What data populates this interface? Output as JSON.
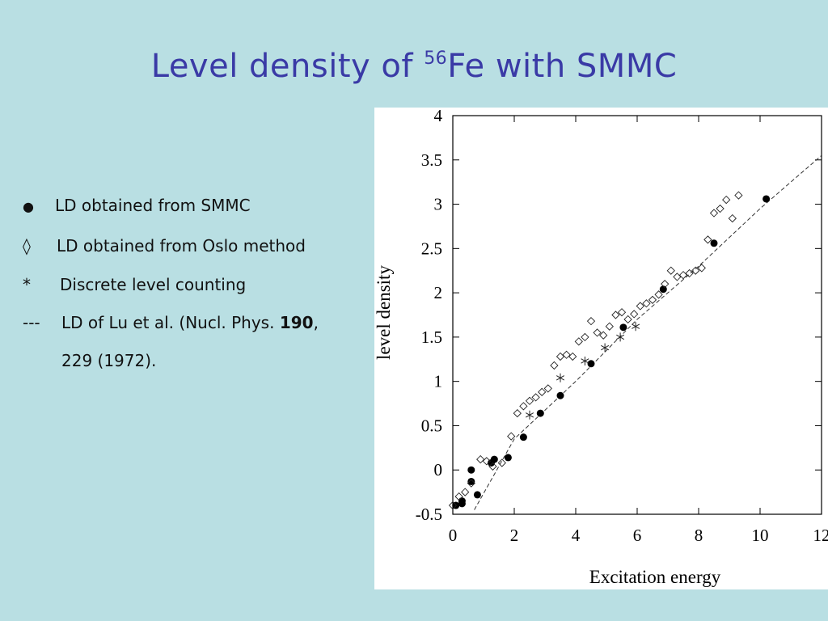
{
  "title": {
    "prefix": "Level density of ",
    "superscript": "56",
    "suffix": "Fe with SMMC"
  },
  "legend_text": [
    {
      "marker": "●",
      "text": "LD obtained from SMMC"
    },
    {
      "marker": "◊",
      "text": "LD obtained from Oslo method"
    },
    {
      "marker": "*",
      "text": "Discrete level counting"
    },
    {
      "marker": "---",
      "text_before": "LD of Lu et al. (Nucl. Phys. ",
      "bold": "190",
      "text_after": ",",
      "continuation": "229 (1972)."
    }
  ],
  "colors": {
    "background": "#b9dfe3",
    "title": "#3a3aa6",
    "chart_background": "#ffffff"
  },
  "chart_data": {
    "type": "scatter",
    "title": "",
    "xlabel": "Excitation energy",
    "ylabel": "level density",
    "xlim": [
      0,
      12
    ],
    "ylim": [
      -0.5,
      4
    ],
    "x_ticks": [
      "0",
      "2",
      "4",
      "6",
      "8",
      "10",
      "12"
    ],
    "y_ticks": [
      "-0.5",
      "0",
      "0.5",
      "1",
      "1.5",
      "2",
      "2.5",
      "3",
      "3.5",
      "4"
    ],
    "grid": false,
    "series": [
      {
        "name": "LD obtained from SMMC",
        "marker": "filled-circle",
        "x": [
          0.1,
          0.3,
          0.3,
          0.6,
          0.6,
          0.8,
          1.25,
          1.35,
          1.8,
          2.3,
          2.85,
          3.5,
          4.5,
          5.55,
          6.85,
          8.5,
          10.2
        ],
        "y": [
          -0.4,
          -0.38,
          -0.35,
          -0.13,
          0.0,
          -0.28,
          0.08,
          0.12,
          0.14,
          0.37,
          0.64,
          0.84,
          1.2,
          1.61,
          2.04,
          2.56,
          3.06
        ]
      },
      {
        "name": "LD obtained from Oslo method",
        "marker": "open-diamond",
        "x": [
          0.0,
          0.2,
          0.4,
          0.6,
          0.9,
          1.1,
          1.3,
          1.6,
          1.9,
          2.1,
          2.3,
          2.5,
          2.7,
          2.9,
          3.1,
          3.3,
          3.5,
          3.7,
          3.9,
          4.1,
          4.3,
          4.5,
          4.7,
          4.9,
          5.1,
          5.3,
          5.5,
          5.7,
          5.9,
          6.1,
          6.3,
          6.5,
          6.7,
          6.9,
          7.1,
          7.3,
          7.5,
          7.7,
          7.9,
          8.1,
          8.3,
          8.5,
          8.7,
          8.9,
          9.1,
          9.3
        ],
        "y": [
          -0.4,
          -0.3,
          -0.25,
          -0.15,
          0.12,
          0.1,
          0.04,
          0.08,
          0.38,
          0.64,
          0.72,
          0.78,
          0.82,
          0.88,
          0.92,
          1.18,
          1.28,
          1.3,
          1.28,
          1.45,
          1.5,
          1.68,
          1.55,
          1.52,
          1.62,
          1.75,
          1.78,
          1.7,
          1.76,
          1.85,
          1.88,
          1.92,
          1.98,
          2.1,
          2.25,
          2.18,
          2.2,
          2.22,
          2.25,
          2.28,
          2.6,
          2.9,
          2.95,
          3.05,
          2.84,
          3.1
        ],
        "x_ok": true
      },
      {
        "name": "Discrete level counting",
        "marker": "asterisk",
        "x": [
          2.5,
          3.5,
          4.3,
          4.95,
          5.45,
          5.95
        ],
        "y": [
          0.62,
          1.04,
          1.23,
          1.38,
          1.5,
          1.62
        ]
      },
      {
        "name": "LD of Lu et al. (Nucl. Phys. 190, 229 (1972).",
        "marker": "dashed-line",
        "x": [
          0.7,
          2.0,
          4.0,
          6.0,
          8.0,
          10.0,
          12.0
        ],
        "y": [
          -0.45,
          0.35,
          1.0,
          1.7,
          2.3,
          2.95,
          3.55
        ]
      }
    ]
  }
}
